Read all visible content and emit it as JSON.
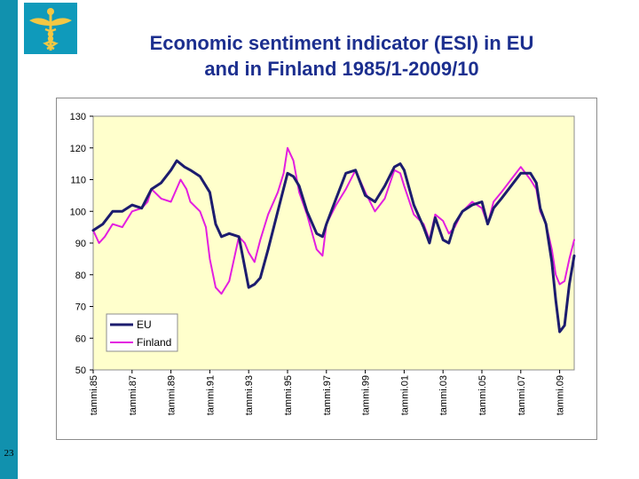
{
  "slide": {
    "title_line1": "Economic sentiment indicator (ESI) in EU",
    "title_line2": "and in Finland 1985/1-2009/10",
    "page_number": "23",
    "logo_icon": "caduceus-icon"
  },
  "colors": {
    "accent_bar": "#1191ae",
    "plot_background": "#ffffcc",
    "eu_line": "#1c1c6e",
    "finland_line": "#e31ee0"
  },
  "chart_data": {
    "type": "line",
    "title": "",
    "xlabel": "",
    "ylabel": "",
    "ylim": [
      50,
      130
    ],
    "yticks": [
      50,
      60,
      70,
      80,
      90,
      100,
      110,
      120,
      130
    ],
    "xlim": [
      1985.0,
      2009.75
    ],
    "xticks": [
      {
        "x": 1985,
        "label": "tammi.85"
      },
      {
        "x": 1987,
        "label": "tammi.87"
      },
      {
        "x": 1989,
        "label": "tammi.89"
      },
      {
        "x": 1991,
        "label": "tammi.91"
      },
      {
        "x": 1993,
        "label": "tammi.93"
      },
      {
        "x": 1995,
        "label": "tammi.95"
      },
      {
        "x": 1997,
        "label": "tammi.97"
      },
      {
        "x": 1999,
        "label": "tammi.99"
      },
      {
        "x": 2001,
        "label": "tammi.01"
      },
      {
        "x": 2003,
        "label": "tammi.03"
      },
      {
        "x": 2005,
        "label": "tammi.05"
      },
      {
        "x": 2007,
        "label": "tammi.07"
      },
      {
        "x": 2009,
        "label": "tammi.09"
      }
    ],
    "grid": false,
    "legend": "bottom-left",
    "series": [
      {
        "name": "EU",
        "color": "#1c1c6e",
        "points": [
          [
            1985.0,
            94
          ],
          [
            1985.5,
            96
          ],
          [
            1986.0,
            100
          ],
          [
            1986.5,
            100
          ],
          [
            1987.0,
            102
          ],
          [
            1987.5,
            101
          ],
          [
            1988.0,
            107
          ],
          [
            1988.5,
            109
          ],
          [
            1989.0,
            113
          ],
          [
            1989.3,
            116
          ],
          [
            1989.7,
            114
          ],
          [
            1990.0,
            113
          ],
          [
            1990.5,
            111
          ],
          [
            1991.0,
            106
          ],
          [
            1991.3,
            96
          ],
          [
            1991.6,
            92
          ],
          [
            1992.0,
            93
          ],
          [
            1992.5,
            92
          ],
          [
            1993.0,
            76
          ],
          [
            1993.3,
            77
          ],
          [
            1993.6,
            79
          ],
          [
            1994.0,
            88
          ],
          [
            1994.5,
            100
          ],
          [
            1995.0,
            112
          ],
          [
            1995.3,
            111
          ],
          [
            1995.6,
            108
          ],
          [
            1996.0,
            100
          ],
          [
            1996.5,
            93
          ],
          [
            1996.8,
            92
          ],
          [
            1997.0,
            96
          ],
          [
            1997.5,
            104
          ],
          [
            1998.0,
            112
          ],
          [
            1998.5,
            113
          ],
          [
            1999.0,
            105
          ],
          [
            1999.5,
            103
          ],
          [
            2000.0,
            108
          ],
          [
            2000.5,
            114
          ],
          [
            2000.8,
            115
          ],
          [
            2001.0,
            113
          ],
          [
            2001.5,
            102
          ],
          [
            2002.0,
            95
          ],
          [
            2002.3,
            90
          ],
          [
            2002.6,
            98
          ],
          [
            2003.0,
            91
          ],
          [
            2003.3,
            90
          ],
          [
            2003.6,
            96
          ],
          [
            2004.0,
            100
          ],
          [
            2004.5,
            102
          ],
          [
            2005.0,
            103
          ],
          [
            2005.3,
            96
          ],
          [
            2005.6,
            101
          ],
          [
            2006.0,
            104
          ],
          [
            2006.5,
            108
          ],
          [
            2007.0,
            112
          ],
          [
            2007.5,
            112
          ],
          [
            2007.8,
            109
          ],
          [
            2008.0,
            101
          ],
          [
            2008.3,
            96
          ],
          [
            2008.6,
            84
          ],
          [
            2008.8,
            72
          ],
          [
            2009.0,
            62
          ],
          [
            2009.25,
            64
          ],
          [
            2009.5,
            77
          ],
          [
            2009.75,
            86
          ]
        ]
      },
      {
        "name": "Finland",
        "color": "#e31ee0",
        "points": [
          [
            1985.0,
            94
          ],
          [
            1985.3,
            90
          ],
          [
            1985.6,
            92
          ],
          [
            1986.0,
            96
          ],
          [
            1986.5,
            95
          ],
          [
            1987.0,
            100
          ],
          [
            1987.5,
            101
          ],
          [
            1987.8,
            103
          ],
          [
            1988.0,
            107
          ],
          [
            1988.5,
            104
          ],
          [
            1989.0,
            103
          ],
          [
            1989.5,
            110
          ],
          [
            1989.8,
            107
          ],
          [
            1990.0,
            103
          ],
          [
            1990.5,
            100
          ],
          [
            1990.8,
            95
          ],
          [
            1991.0,
            85
          ],
          [
            1991.3,
            76
          ],
          [
            1991.6,
            74
          ],
          [
            1992.0,
            78
          ],
          [
            1992.5,
            92
          ],
          [
            1992.8,
            90
          ],
          [
            1993.0,
            87
          ],
          [
            1993.3,
            84
          ],
          [
            1993.6,
            91
          ],
          [
            1994.0,
            99
          ],
          [
            1994.5,
            106
          ],
          [
            1994.8,
            112
          ],
          [
            1995.0,
            120
          ],
          [
            1995.3,
            116
          ],
          [
            1995.6,
            106
          ],
          [
            1996.0,
            99
          ],
          [
            1996.5,
            88
          ],
          [
            1996.8,
            86
          ],
          [
            1997.0,
            96
          ],
          [
            1997.5,
            102
          ],
          [
            1998.0,
            107
          ],
          [
            1998.5,
            113
          ],
          [
            1999.0,
            106
          ],
          [
            1999.5,
            100
          ],
          [
            2000.0,
            104
          ],
          [
            2000.5,
            113
          ],
          [
            2000.8,
            112
          ],
          [
            2001.0,
            108
          ],
          [
            2001.5,
            99
          ],
          [
            2002.0,
            96
          ],
          [
            2002.3,
            91
          ],
          [
            2002.6,
            99
          ],
          [
            2003.0,
            97
          ],
          [
            2003.3,
            93
          ],
          [
            2003.6,
            95
          ],
          [
            2004.0,
            100
          ],
          [
            2004.5,
            103
          ],
          [
            2005.0,
            101
          ],
          [
            2005.3,
            96
          ],
          [
            2005.6,
            103
          ],
          [
            2006.0,
            106
          ],
          [
            2006.5,
            110
          ],
          [
            2007.0,
            114
          ],
          [
            2007.5,
            110
          ],
          [
            2007.8,
            107
          ],
          [
            2008.0,
            100
          ],
          [
            2008.3,
            96
          ],
          [
            2008.6,
            88
          ],
          [
            2008.8,
            80
          ],
          [
            2009.0,
            77
          ],
          [
            2009.25,
            78
          ],
          [
            2009.5,
            85
          ],
          [
            2009.75,
            91
          ]
        ]
      }
    ]
  }
}
